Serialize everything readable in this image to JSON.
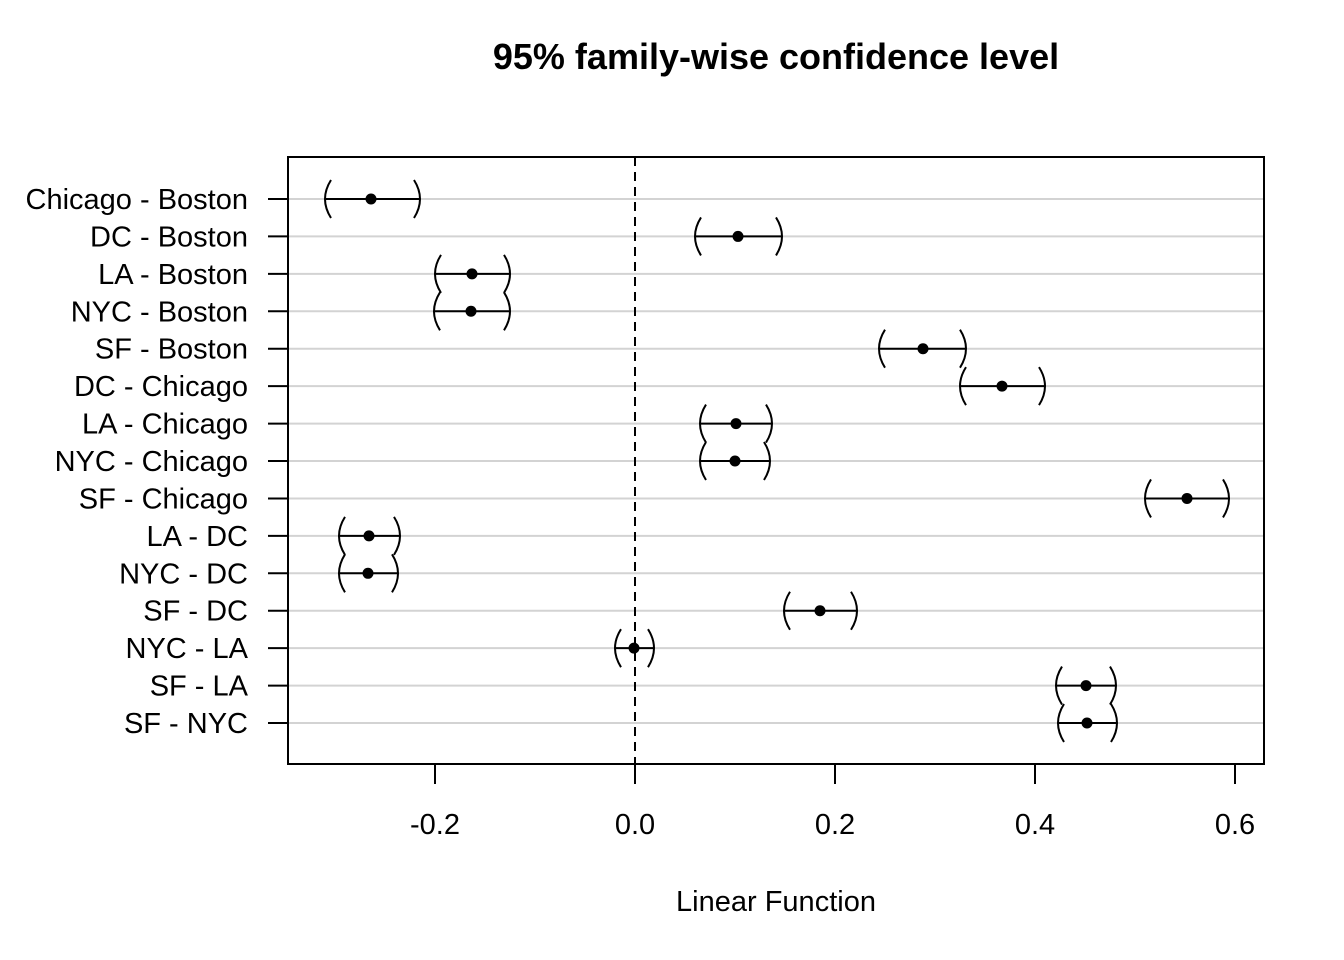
{
  "chart_data": {
    "type": "scatter",
    "title": "95% family-wise confidence level",
    "xlabel": "Linear Function",
    "ylabel": "",
    "xlim": [
      -0.346,
      0.629
    ],
    "x_ticks": [
      -0.2,
      0.0,
      0.2,
      0.4,
      0.6
    ],
    "x_tick_labels": [
      "-0.2",
      "0.0",
      "0.2",
      "0.4",
      "0.6"
    ],
    "reference_line": 0.0,
    "grid": "horizontal",
    "categories": [
      "Chicago - Boston",
      "DC - Boston",
      "LA - Boston",
      "NYC - Boston",
      "SF - Boston",
      "DC - Chicago",
      "LA - Chicago",
      "NYC - Chicago",
      "SF - Chicago",
      "LA - DC",
      "NYC - DC",
      "SF - DC",
      "NYC - LA",
      "SF - LA",
      "SF - NYC"
    ],
    "estimates": [
      -0.264,
      0.103,
      -0.163,
      -0.164,
      0.288,
      0.367,
      0.101,
      0.1,
      0.552,
      -0.266,
      -0.267,
      0.185,
      -0.001,
      0.451,
      0.452
    ],
    "lower": [
      -0.309,
      0.061,
      -0.199,
      -0.2,
      0.245,
      0.326,
      0.066,
      0.066,
      0.511,
      -0.295,
      -0.295,
      0.15,
      -0.019,
      0.422,
      0.424
    ],
    "upper": [
      -0.216,
      0.146,
      -0.126,
      -0.126,
      0.33,
      0.409,
      0.136,
      0.134,
      0.593,
      -0.236,
      -0.238,
      0.221,
      0.018,
      0.48,
      0.481
    ]
  }
}
